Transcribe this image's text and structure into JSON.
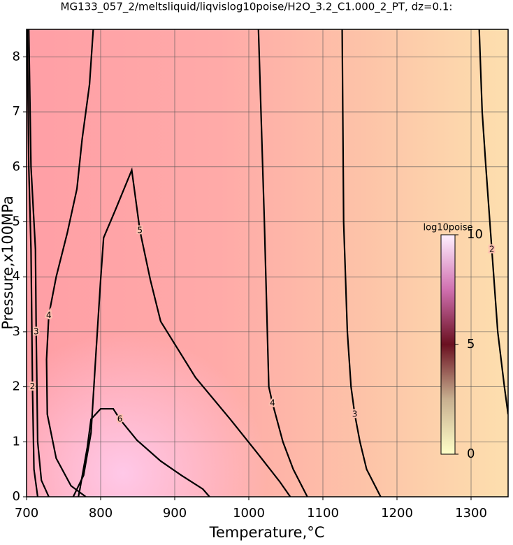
{
  "chart_data": {
    "type": "contour",
    "title": "MG133_057_2/meltsliquid/liqvislog10poise/H2O_3.2_C1.000_2_PT, dz=0.1:",
    "x_label": "Temperature,°C",
    "y_label": "Pressure,x100MPa",
    "xlim": [
      700,
      1350
    ],
    "ylim": [
      0,
      8.5
    ],
    "xticks": [
      700,
      800,
      900,
      1000,
      1100,
      1200,
      1300
    ],
    "yticks": [
      0,
      1,
      2,
      3,
      4,
      5,
      6,
      7,
      8
    ],
    "grid": true,
    "line_color": "#000000",
    "contours": [
      {
        "level": 2,
        "x": [
          1311,
          1315,
          1320,
          1328,
          1336,
          1345,
          1350
        ],
        "y": [
          8.5,
          7,
          6,
          4.5,
          3,
          2,
          1.5
        ]
      },
      {
        "level": 3,
        "x": [
          1126,
          1128,
          1133,
          1138,
          1143,
          1150,
          1159,
          1178
        ],
        "y": [
          8.5,
          5,
          3,
          2,
          1.5,
          1,
          0.5,
          0
        ]
      },
      {
        "level": 4,
        "x": [
          1013,
          1021,
          1027,
          1032,
          1046,
          1060,
          1079
        ],
        "y": [
          8.5,
          5,
          2,
          1.7,
          1,
          0.5,
          0
        ]
      },
      {
        "level": 5,
        "x": [
          763,
          777,
          787,
          794,
          800,
          804,
          820,
          842,
          853,
          867,
          881,
          928,
          975,
          1013,
          1042,
          1056
        ],
        "y": [
          0,
          0.39,
          1.16,
          2.68,
          3.95,
          4.71,
          5.22,
          5.94,
          4.84,
          3.95,
          3.19,
          2.17,
          1.41,
          0.77,
          0.27,
          0
        ]
      },
      {
        "level": 6,
        "x": [
          770,
          772,
          782,
          787,
          800,
          817,
          826,
          849,
          881,
          909,
          938,
          947
        ],
        "y": [
          0,
          0.14,
          0.9,
          1.41,
          1.6,
          1.6,
          1.41,
          1.03,
          0.65,
          0.39,
          0.14,
          0
        ]
      },
      {
        "level": 4,
        "x": [
          790,
          785,
          775,
          768,
          755,
          740,
          730,
          727,
          728,
          740,
          760,
          780
        ],
        "y": [
          8.5,
          7.5,
          6.5,
          5.6,
          4.8,
          4,
          3.3,
          2.5,
          1.5,
          0.7,
          0.2,
          0
        ]
      },
      {
        "level": 3,
        "x": [
          703,
          706,
          712,
          713,
          715,
          720,
          730
        ],
        "y": [
          8.5,
          6,
          4.5,
          3,
          1,
          0.3,
          0
        ]
      },
      {
        "level": 2,
        "x": [
          701,
          703,
          706,
          708,
          710,
          715
        ],
        "y": [
          8.5,
          6,
          4.5,
          2,
          0.5,
          0
        ]
      }
    ],
    "colorbar": {
      "label": "log10poise",
      "lim": [
        0,
        10
      ],
      "ticks": [
        0,
        5,
        10
      ]
    }
  }
}
